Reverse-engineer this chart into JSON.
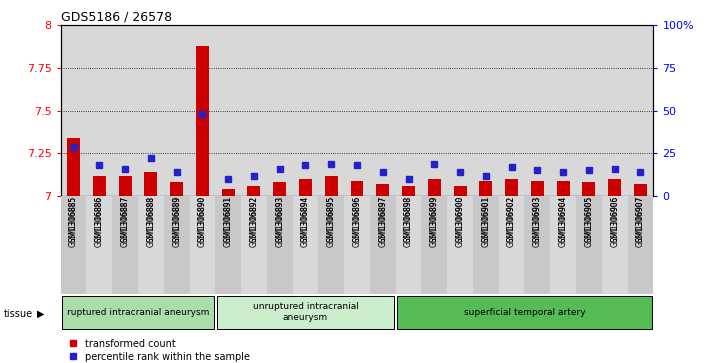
{
  "title": "GDS5186 / 26578",
  "samples": [
    "GSM1306885",
    "GSM1306886",
    "GSM1306887",
    "GSM1306888",
    "GSM1306889",
    "GSM1306890",
    "GSM1306891",
    "GSM1306892",
    "GSM1306893",
    "GSM1306894",
    "GSM1306895",
    "GSM1306896",
    "GSM1306897",
    "GSM1306898",
    "GSM1306899",
    "GSM1306900",
    "GSM1306901",
    "GSM1306902",
    "GSM1306903",
    "GSM1306904",
    "GSM1306905",
    "GSM1306906",
    "GSM1306907"
  ],
  "red_values": [
    7.34,
    7.12,
    7.12,
    7.14,
    7.08,
    7.88,
    7.04,
    7.06,
    7.08,
    7.1,
    7.12,
    7.09,
    7.07,
    7.06,
    7.1,
    7.06,
    7.09,
    7.1,
    7.09,
    7.09,
    7.08,
    7.1,
    7.07
  ],
  "blue_values": [
    29,
    18,
    16,
    22,
    14,
    48,
    10,
    12,
    16,
    18,
    19,
    18,
    14,
    10,
    19,
    14,
    12,
    17,
    15,
    14,
    15,
    16,
    14
  ],
  "ylim_left": [
    7.0,
    8.0
  ],
  "ylim_right": [
    0,
    100
  ],
  "yticks_left": [
    7.0,
    7.25,
    7.5,
    7.75,
    8.0
  ],
  "yticks_right": [
    0,
    25,
    50,
    75,
    100
  ],
  "ytick_labels_left": [
    "7",
    "7.25",
    "7.5",
    "7.75",
    "8"
  ],
  "ytick_labels_right": [
    "0",
    "25",
    "50",
    "75",
    "100%"
  ],
  "groups": [
    {
      "label": "ruptured intracranial aneurysm",
      "start": 0,
      "end": 5
    },
    {
      "label": "unruptured intracranial\naneurysm",
      "start": 6,
      "end": 12
    },
    {
      "label": "superficial temporal artery",
      "start": 13,
      "end": 22
    }
  ],
  "group_colors": [
    "#aaddaa",
    "#cceecc",
    "#55bb55"
  ],
  "bar_color_red": "#cc0000",
  "bar_color_blue": "#2222cc",
  "bg_color": "#d8d8d8",
  "bar_width": 0.5,
  "legend_red": "transformed count",
  "legend_blue": "percentile rank within the sample"
}
